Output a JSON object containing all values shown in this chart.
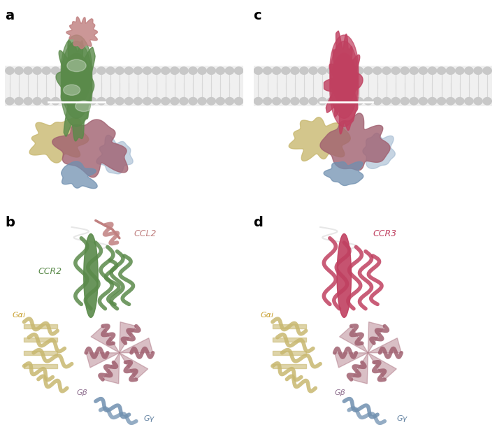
{
  "figure_width": 7.11,
  "figure_height": 6.31,
  "dpi": 100,
  "bg_color": "#ffffff",
  "panel_label_fontsize": 14,
  "panel_label_weight": "bold",
  "ccr2_receptor_color": "#5a8a4a",
  "ccl2_color": "#c08080",
  "ccr3_receptor_color": "#c04060",
  "gai_color": "#c8b870",
  "gbeta_color": "#a06070",
  "ggamma_color": "#7090b0",
  "label_ccl2": "CCL2",
  "label_ccr2": "CCR2",
  "label_ccr3": "CCR3",
  "label_gai": "Gαi",
  "label_gbeta": "Gβ",
  "label_ggamma": "Gγ",
  "label_gai_color": "#c8a030",
  "label_gbeta_color": "#907090",
  "label_ggamma_color": "#6080a0",
  "label_ccr2_color": "#5a8a4a",
  "label_ccl2_color": "#c08080",
  "label_ccr3_color": "#c04060",
  "annotation_fontsize": 8
}
